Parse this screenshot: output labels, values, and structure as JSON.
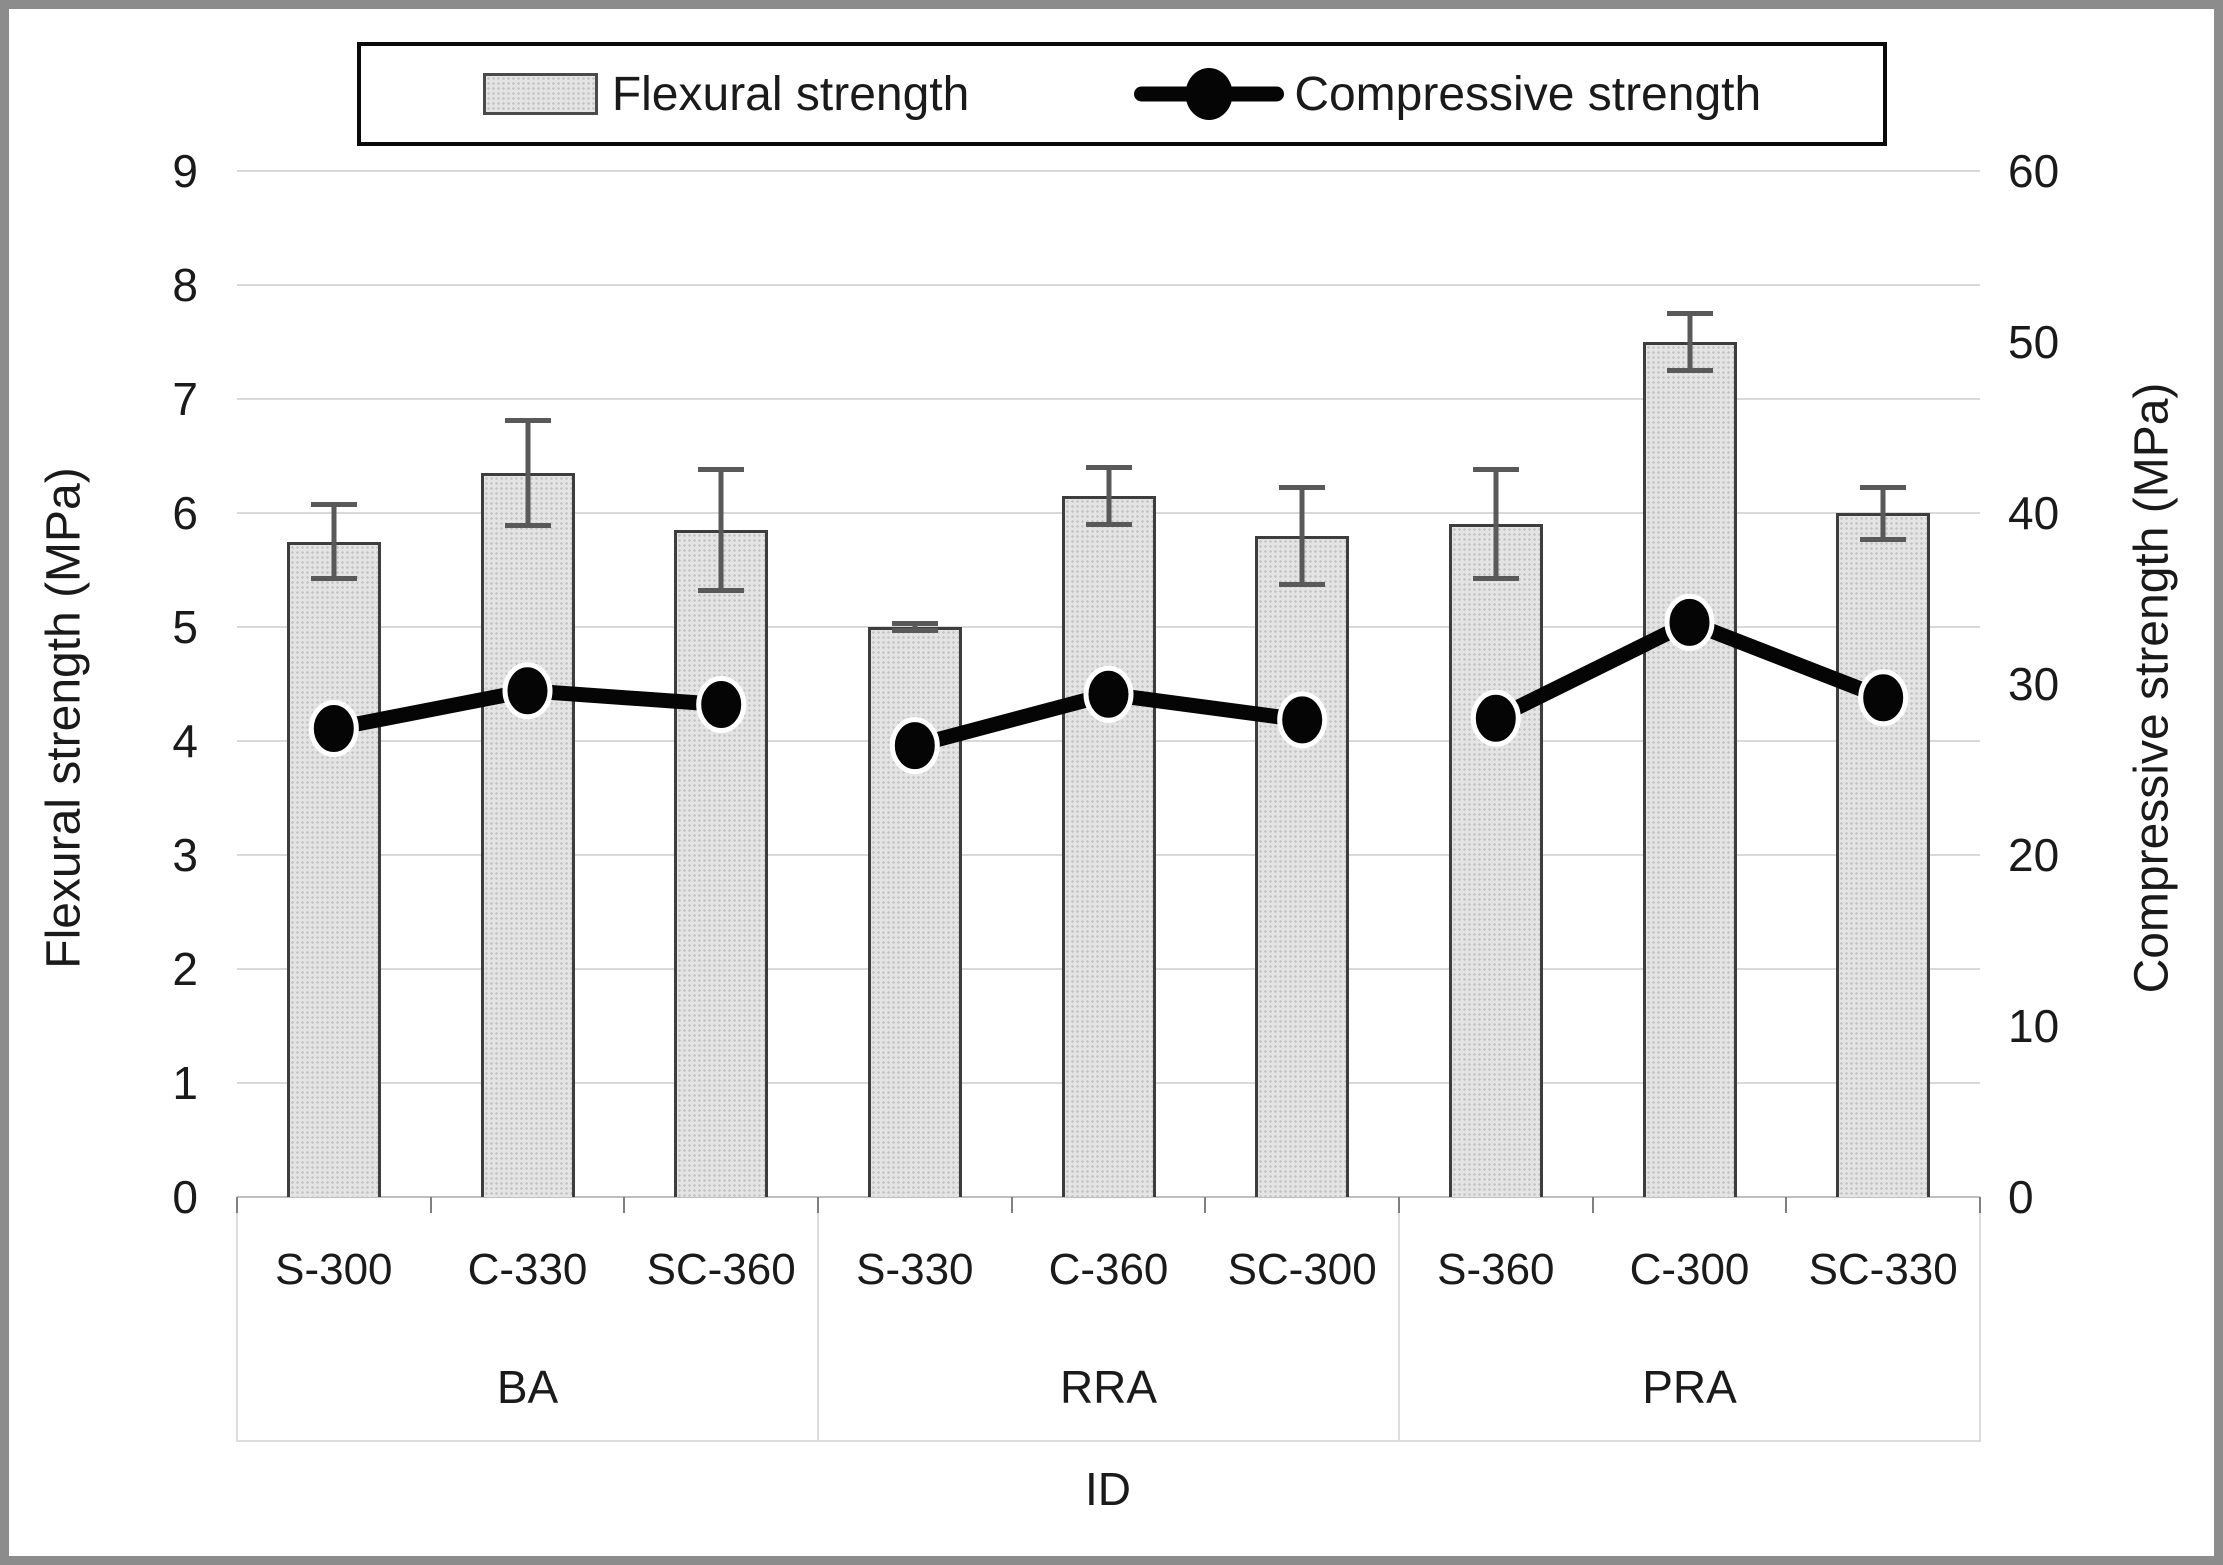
{
  "legend": {
    "items": [
      {
        "label": "Flexural strength",
        "marker": "gray-bar-swatch"
      },
      {
        "label": "Compressive strength",
        "marker": "black-line-with-dot"
      }
    ]
  },
  "axes": {
    "left": {
      "title": "Flexural strength (MPa)",
      "ticks": [
        "0",
        "1",
        "2",
        "3",
        "4",
        "5",
        "6",
        "7",
        "8",
        "9"
      ]
    },
    "right": {
      "title": "Compressive strength (MPa)",
      "ticks": [
        "0",
        "10",
        "20",
        "30",
        "40",
        "50",
        "60"
      ]
    },
    "x": {
      "title": "ID"
    }
  },
  "chart_data": {
    "type": "bar+line dual-axis combo",
    "categories": [
      "S-300",
      "C-330",
      "SC-360",
      "S-330",
      "C-360",
      "SC-300",
      "S-360",
      "C-300",
      "SC-330"
    ],
    "groups": [
      {
        "label": "BA",
        "categories": [
          "S-300",
          "C-330",
          "SC-360"
        ]
      },
      {
        "label": "RRA",
        "categories": [
          "S-330",
          "C-360",
          "SC-300"
        ]
      },
      {
        "label": "PRA",
        "categories": [
          "S-360",
          "C-300",
          "SC-330"
        ]
      }
    ],
    "series": [
      {
        "name": "Flexural strength",
        "type": "bar",
        "axis": "left",
        "values": [
          5.75,
          6.35,
          5.85,
          5.0,
          6.15,
          5.8,
          5.9,
          7.5,
          6.0
        ],
        "error_bars": [
          0.35,
          0.48,
          0.55,
          0.05,
          0.27,
          0.45,
          0.5,
          0.27,
          0.25
        ]
      },
      {
        "name": "Compressive strength",
        "type": "line",
        "axis": "right",
        "values": [
          27.4,
          29.6,
          28.8,
          26.4,
          29.4,
          27.9,
          28.0,
          33.6,
          29.2
        ],
        "line_breaks_between_groups": true
      }
    ],
    "xlabel": "ID",
    "ylabel_left": "Flexural strength (MPa)",
    "ylabel_right": "Compressive strength (MPa)",
    "ylim_left": [
      0,
      9
    ],
    "ylim_right": [
      0,
      60
    ],
    "grid": "horizontal gridlines every 1 MPa on left axis",
    "legend_position": "top center",
    "colors": {
      "bar_fill": "#e4e4e4",
      "bar_border": "#3d3d3d",
      "line": "#050505",
      "marker": "#050505",
      "marker_ring": "#ffffff",
      "gridline": "#d9d9d9",
      "error_bar": "#595959",
      "text": "#1a1a1a",
      "frame": "#8c8c8c"
    }
  }
}
